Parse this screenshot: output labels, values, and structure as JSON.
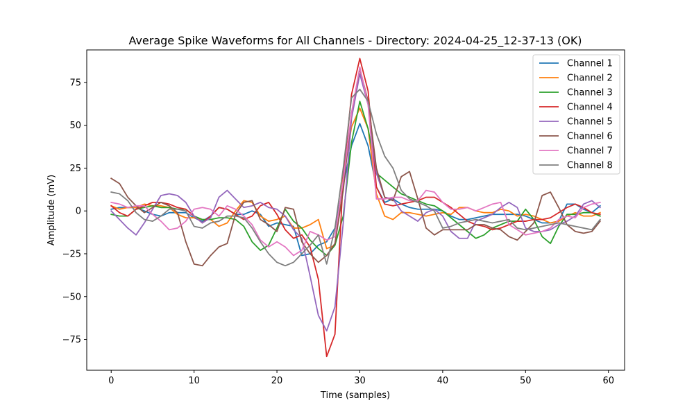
{
  "chart_data": {
    "type": "line",
    "title": "Average Spike Waveforms for All Channels - Directory: 2024-04-25_12-37-13 (OK)",
    "xlabel": "Time (samples)",
    "ylabel": "Amplitude (mV)",
    "xlim": [
      -2.95,
      61.95
    ],
    "ylim": [
      -93,
      94
    ],
    "xticks": [
      0,
      10,
      20,
      30,
      40,
      50,
      60
    ],
    "yticks": [
      -75,
      -50,
      -25,
      0,
      25,
      50,
      75
    ],
    "grid": false,
    "legend_position": "top-right",
    "x_start": 0,
    "series": [
      {
        "name": "Channel 1",
        "color": "#1f77b4",
        "values": [
          1,
          2,
          2,
          2,
          0,
          -2,
          -3,
          -1,
          -1,
          -1,
          -4,
          -6,
          -3,
          2,
          1,
          -2,
          -2,
          0,
          -2,
          -9,
          -7,
          -8,
          -9,
          -26,
          -25,
          -20,
          -18,
          -10,
          15,
          38,
          51,
          38,
          14,
          5,
          7,
          4,
          2,
          1,
          1,
          1,
          0,
          -3,
          -5,
          -5,
          -4,
          -3,
          -2,
          -2,
          -2,
          -2,
          -3,
          -5,
          -7,
          -7,
          -6,
          4,
          4,
          1,
          -1,
          3
        ]
      },
      {
        "name": "Channel 2",
        "color": "#ff7f0e",
        "values": [
          3,
          1,
          2,
          2,
          4,
          3,
          3,
          2,
          -2,
          -4,
          -4,
          -5,
          -5,
          -9,
          -7,
          0,
          6,
          5,
          -3,
          -6,
          -5,
          -3,
          -10,
          -10,
          -8,
          -5,
          -22,
          -20,
          20,
          49,
          60,
          48,
          10,
          -3,
          -5,
          -1,
          -1,
          -2,
          -3,
          -2,
          -1,
          -2,
          2,
          2,
          0,
          -1,
          -1,
          1,
          0,
          -3,
          -2,
          -3,
          -5,
          -7,
          -6,
          -3,
          -1,
          -3,
          -3,
          -1
        ]
      },
      {
        "name": "Channel 3",
        "color": "#2ca02c",
        "values": [
          -2,
          -3,
          -3,
          1,
          2,
          3,
          2,
          2,
          1,
          1,
          -3,
          -5,
          -5,
          -4,
          -4,
          -5,
          -9,
          -18,
          -23,
          -20,
          -10,
          1,
          -6,
          -10,
          -17,
          -22,
          -26,
          -20,
          -3,
          40,
          64,
          48,
          22,
          18,
          14,
          10,
          8,
          6,
          4,
          3,
          0,
          -4,
          -8,
          -12,
          -16,
          -14,
          -10,
          -8,
          -6,
          -6,
          1,
          -5,
          -15,
          -19,
          -9,
          -2,
          -2,
          -1,
          -1,
          -3
        ]
      },
      {
        "name": "Channel 4",
        "color": "#d62728",
        "values": [
          3,
          -1,
          -3,
          1,
          3,
          5,
          5,
          4,
          2,
          1,
          -3,
          -7,
          -3,
          2,
          1,
          -2,
          -5,
          -3,
          3,
          5,
          -2,
          -11,
          -16,
          -14,
          -21,
          -40,
          -85,
          -72,
          20,
          68,
          89,
          70,
          14,
          4,
          3,
          4,
          5,
          6,
          8,
          8,
          5,
          2,
          -2,
          -6,
          -8,
          -9,
          -11,
          -10,
          -8,
          -6,
          -6,
          -5,
          -5,
          -4,
          -1,
          2,
          4,
          2,
          -1,
          -2
        ]
      },
      {
        "name": "Channel 5",
        "color": "#9467bd",
        "values": [
          0,
          -5,
          -10,
          -14,
          -7,
          1,
          9,
          10,
          9,
          5,
          -3,
          -7,
          -4,
          8,
          12,
          7,
          2,
          3,
          5,
          2,
          1,
          -3,
          -11,
          -16,
          -38,
          -61,
          -70,
          -56,
          -7,
          54,
          80,
          62,
          22,
          8,
          7,
          0,
          -3,
          -6,
          -1,
          1,
          -3,
          -12,
          -16,
          -16,
          -6,
          -4,
          -2,
          2,
          5,
          2,
          -10,
          -12,
          -12,
          -11,
          -8,
          -6,
          -3,
          4,
          6,
          2
        ]
      },
      {
        "name": "Channel 6",
        "color": "#8c564b",
        "values": [
          19,
          16,
          8,
          3,
          -1,
          2,
          5,
          3,
          -1,
          -18,
          -31,
          -32,
          -26,
          -21,
          -19,
          -2,
          5,
          6,
          -5,
          -8,
          -12,
          2,
          1,
          -18,
          -25,
          -30,
          -26,
          -19,
          12,
          57,
          83,
          64,
          25,
          8,
          6,
          20,
          23,
          7,
          -10,
          -14,
          -11,
          -11,
          -11,
          -11,
          -8,
          -8,
          -10,
          -11,
          -15,
          -17,
          -12,
          -7,
          9,
          11,
          2,
          -8,
          -12,
          -13,
          -12,
          -6
        ]
      },
      {
        "name": "Channel 7",
        "color": "#e377c2",
        "values": [
          5,
          4,
          2,
          3,
          3,
          -2,
          -6,
          -11,
          -10,
          -6,
          1,
          2,
          1,
          -3,
          3,
          1,
          -3,
          -8,
          -17,
          -21,
          -18,
          -21,
          -26,
          -23,
          -12,
          -14,
          -17,
          -15,
          18,
          57,
          84,
          62,
          7,
          7,
          8,
          8,
          6,
          6,
          12,
          11,
          5,
          1,
          1,
          2,
          0,
          2,
          4,
          5,
          -8,
          -11,
          -14,
          -13,
          -12,
          -10,
          -5,
          -3,
          -4,
          2,
          4,
          5
        ]
      },
      {
        "name": "Channel 8",
        "color": "#7f7f7f",
        "values": [
          11,
          10,
          6,
          -1,
          -5,
          -6,
          -3,
          1,
          1,
          0,
          -9,
          -10,
          -7,
          -6,
          -3,
          -3,
          -4,
          -10,
          -18,
          -25,
          -30,
          -32,
          -30,
          -25,
          -20,
          -14,
          -31,
          -10,
          25,
          66,
          71,
          64,
          45,
          32,
          25,
          12,
          7,
          5,
          3,
          0,
          -10,
          -9,
          -7,
          -6,
          -5,
          -6,
          -7,
          -6,
          -5,
          -10,
          -11,
          -10,
          -9,
          -8,
          -7,
          -8,
          -9,
          -10,
          -11,
          -5
        ]
      }
    ]
  }
}
